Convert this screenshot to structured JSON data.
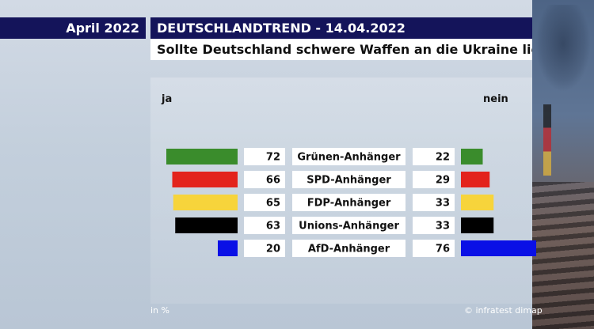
{
  "header": {
    "date": "April 2022",
    "title": "DEUTSCHLANDTREND - 14.04.2022",
    "question": "Sollte Deutschland schwere Waffen an die Ukraine liefern?"
  },
  "footer": {
    "unit": "in %",
    "source": "© infratest dimap"
  },
  "chart_data": {
    "type": "bar",
    "orientation": "horizontal-diverging",
    "title": "Sollte Deutschland schwere Waffen an die Ukraine liefern?",
    "unit": "in %",
    "categories": [
      "Grünen-Anhänger",
      "SPD-Anhänger",
      "FDP-Anhänger",
      "Unions-Anhänger",
      "AfD-Anhänger"
    ],
    "colors": [
      "#3a8c2c",
      "#e3231c",
      "#f7d43b",
      "#000000",
      "#0a10e6"
    ],
    "series": [
      {
        "name": "ja",
        "values": [
          72,
          66,
          65,
          63,
          20
        ]
      },
      {
        "name": "nein",
        "values": [
          22,
          29,
          33,
          33,
          76
        ]
      }
    ]
  }
}
